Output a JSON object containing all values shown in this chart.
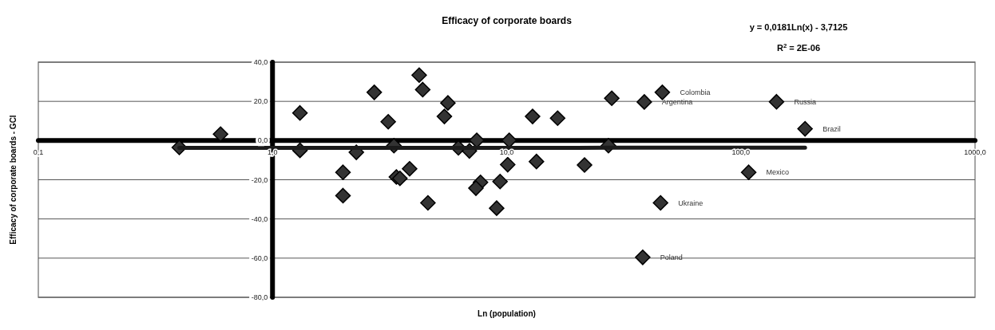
{
  "chart_data": {
    "type": "scatter",
    "title": "Efficacy of corporate boards",
    "xlabel": "Ln (population)",
    "ylabel": "Efficacy of corporate boards - GCI",
    "log": "x",
    "grid": "y",
    "xlim": [
      0.1,
      1000
    ],
    "ylim": [
      -80,
      40
    ],
    "xticks": [
      {
        "value": 0.1,
        "label": "0,1"
      },
      {
        "value": 1,
        "label": "1,0"
      },
      {
        "value": 10,
        "label": "10,0"
      },
      {
        "value": 100,
        "label": "100,0"
      },
      {
        "value": 1000,
        "label": "1000,0"
      }
    ],
    "yticks": [
      {
        "value": -80,
        "label": "-80,0"
      },
      {
        "value": -60,
        "label": "-60,0"
      },
      {
        "value": -40,
        "label": "-40,0"
      },
      {
        "value": -20,
        "label": "-20,0"
      },
      {
        "value": 0,
        "label": "0,0"
      },
      {
        "value": 20,
        "label": "20,0"
      },
      {
        "value": 40,
        "label": "40,0"
      }
    ],
    "series": [
      {
        "color": "#333333",
        "marker": "diamond",
        "x": [
          0.4,
          0.6,
          1.31,
          1.31,
          2.0,
          2.0,
          2.28,
          2.72,
          3.12,
          3.3,
          3.38,
          3.5,
          3.85,
          4.23,
          4.38,
          4.61,
          5.61,
          5.42,
          6.22,
          6.93,
          7.45,
          7.73,
          7.39,
          9.37,
          9.06,
          10.1,
          10.25,
          12.9,
          13.4,
          16.5,
          21.5,
          28.1,
          27.2,
          38.7,
          46.2,
          45.4,
          38.1,
          142,
          188,
          108
        ],
        "values": [
          -3.5,
          3.3,
          14.1,
          -5,
          -16.2,
          -28.1,
          -6,
          24.6,
          9.6,
          -2.6,
          -18.6,
          -19.3,
          -14.4,
          33.4,
          26,
          -31.8,
          19.2,
          12.3,
          -3.7,
          -5.3,
          0.1,
          -21.3,
          -24.3,
          -20.9,
          -34.5,
          -12.3,
          0.1,
          12.3,
          -10.7,
          11.4,
          -12.5,
          21.6,
          -2.6,
          19.7,
          24.6,
          -31.8,
          -59.6,
          19.8,
          6,
          -16.2
        ]
      },
      {
        "type": "line",
        "color": "#1a1a1a",
        "x": [
          0.4,
          0.8,
          20,
          60,
          188
        ],
        "values": [
          -3.7,
          -3.7,
          -3.7,
          -3.6,
          -3.6
        ]
      }
    ],
    "annotations": [
      "y = 0,0181Ln(x) - 3,7125",
      "R$^{2}$ = 2E-06",
      {
        "text": "Colombia",
        "x": 46.2,
        "y": 24.6
      },
      {
        "text": "Argentina",
        "x": 38.7,
        "y": 19.7
      },
      {
        "text": "Russia",
        "x": 142,
        "y": 19.8
      },
      {
        "text": "Brazil",
        "x": 188,
        "y": 6
      },
      {
        "text": "Mexico",
        "x": 108,
        "y": -16.2
      },
      {
        "text": "Ukraine",
        "x": 45.4,
        "y": -31.8
      },
      {
        "text": "Poland",
        "x": 38.1,
        "y": -59.6
      }
    ]
  }
}
